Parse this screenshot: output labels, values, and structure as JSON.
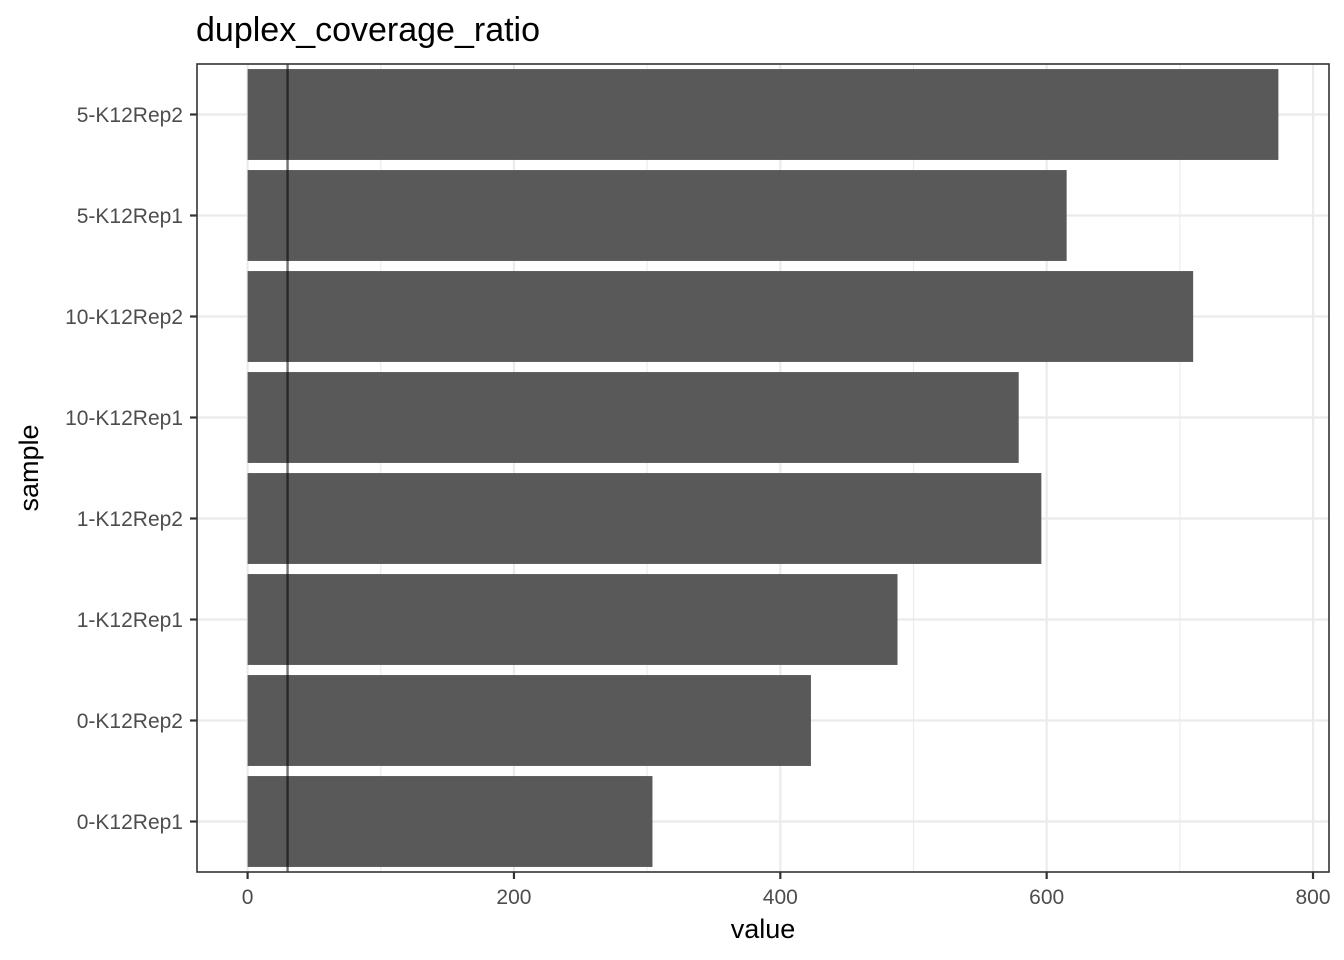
{
  "chart_data": {
    "type": "bar",
    "orientation": "horizontal",
    "title": "duplex_coverage_ratio",
    "xlabel": "value",
    "ylabel": "sample",
    "categories": [
      "0-K12Rep1",
      "0-K12Rep2",
      "1-K12Rep1",
      "1-K12Rep2",
      "10-K12Rep1",
      "10-K12Rep2",
      "5-K12Rep1",
      "5-K12Rep2"
    ],
    "values": [
      304,
      423,
      488,
      596,
      579,
      710,
      615,
      774
    ],
    "xlim": [
      -38,
      812
    ],
    "x_ticks": [
      0,
      200,
      400,
      600,
      800
    ],
    "reference_line": 30,
    "grid": true,
    "colors": {
      "bar": "#595959",
      "reference_line": "#000000"
    }
  }
}
